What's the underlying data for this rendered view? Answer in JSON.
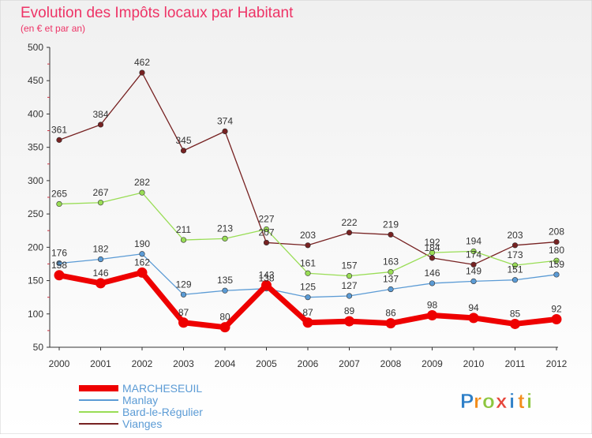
{
  "chart_data": {
    "type": "line",
    "title": "Evolution des Impôts locaux par Habitant",
    "subtitle": "(en € et par an)",
    "xlabel": "",
    "ylabel": "",
    "ylim": [
      50,
      500
    ],
    "yticks": [
      50,
      100,
      150,
      200,
      250,
      300,
      350,
      400,
      450,
      500
    ],
    "x": [
      "2000",
      "2001",
      "2002",
      "2003",
      "2004",
      "2005",
      "2006",
      "2007",
      "2008",
      "2009",
      "2010",
      "2011",
      "2012"
    ],
    "grid": false,
    "legend_position": "bottom-left",
    "series": [
      {
        "name": "MARCHESEUIL",
        "color": "#ee0000",
        "values": [
          158,
          146,
          162,
          87,
          80,
          143,
          87,
          89,
          86,
          98,
          94,
          85,
          92
        ]
      },
      {
        "name": "Manlay",
        "color": "#5b9bd5",
        "values": [
          176,
          182,
          190,
          129,
          135,
          138,
          125,
          127,
          137,
          146,
          149,
          151,
          159
        ]
      },
      {
        "name": "Bard-le-Régulier",
        "color": "#99dd55",
        "values": [
          265,
          267,
          282,
          211,
          213,
          227,
          161,
          157,
          163,
          192,
          194,
          173,
          180
        ]
      },
      {
        "name": "Vianges",
        "color": "#772222",
        "values": [
          361,
          384,
          462,
          345,
          374,
          207,
          203,
          222,
          219,
          184,
          174,
          203,
          208
        ]
      }
    ]
  },
  "brand": {
    "letters": [
      "P",
      "r",
      "o",
      "x",
      "i",
      "t",
      "i"
    ],
    "colors": [
      "#2f80c8",
      "#f28c1a",
      "#8dc63f",
      "#e6453a",
      "#2f80c8",
      "#f28c1a",
      "#8dc63f"
    ]
  },
  "colors": {
    "title": "#ee3366",
    "axis": "#333333",
    "background_top": "#f2f2f2",
    "background_bottom": "#ffffff"
  }
}
